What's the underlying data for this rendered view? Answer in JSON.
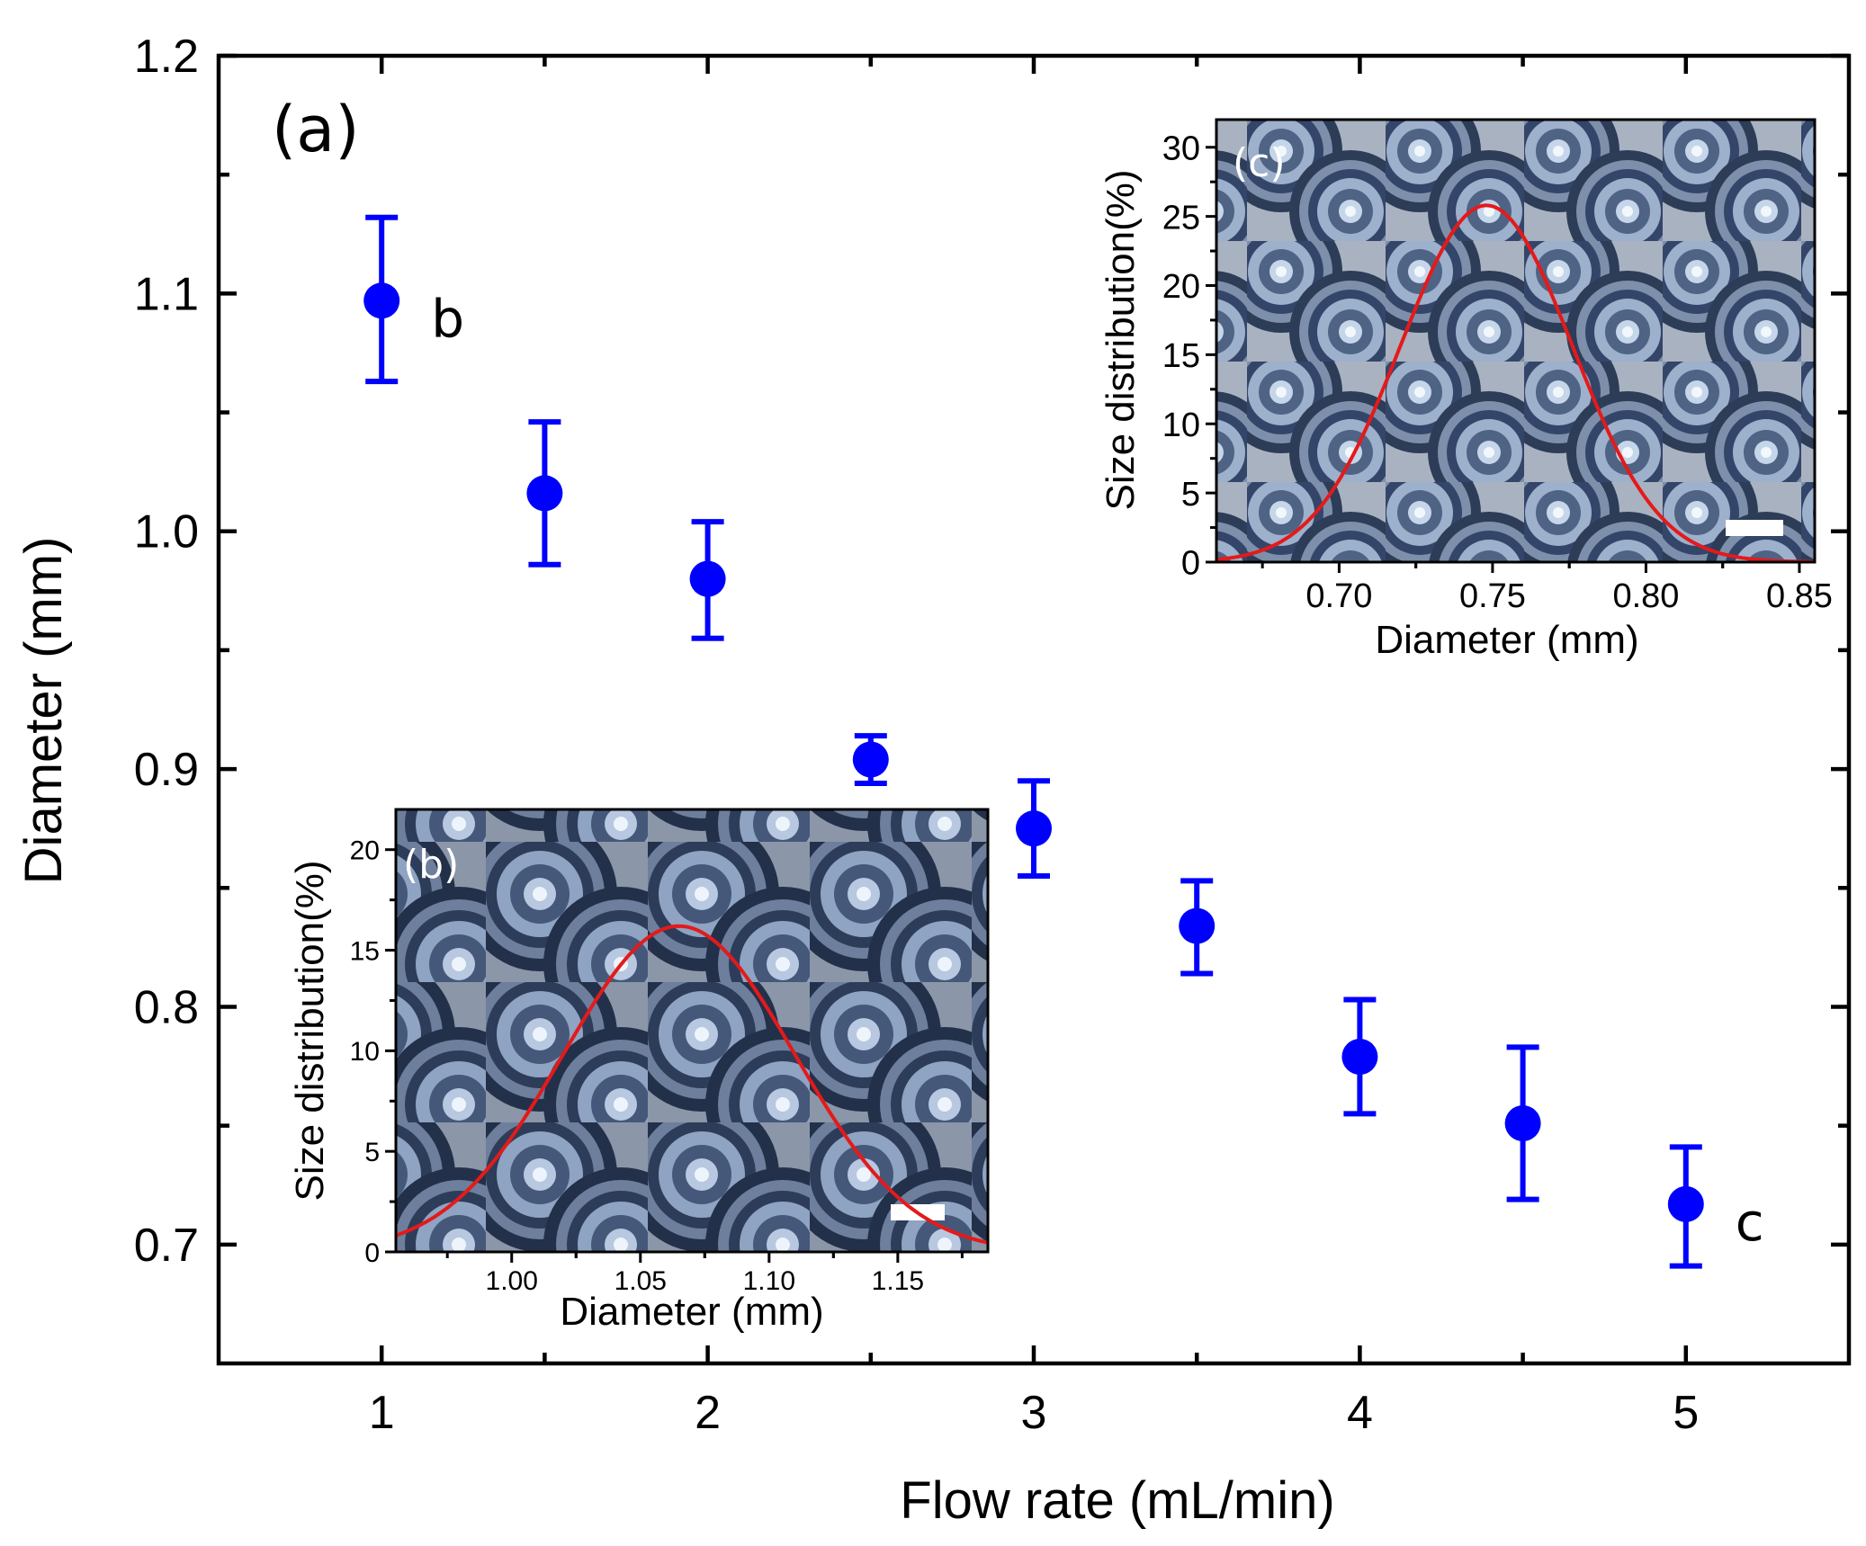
{
  "chart_data": [
    {
      "type": "scatter",
      "panel_label": "(a)",
      "xlabel": "Flow rate (mL/min)",
      "ylabel": "Diameter (mm)",
      "xlim": [
        0.5,
        5.5
      ],
      "ylim": [
        0.65,
        1.2
      ],
      "xticks": [
        "1",
        "2",
        "3",
        "4",
        "5"
      ],
      "yticks": [
        "0.7",
        "0.8",
        "0.9",
        "1.0",
        "1.1",
        "1.2"
      ],
      "marker_color": "#0000ff",
      "series": [
        {
          "name": "Diameter",
          "x": [
            1.0,
            1.5,
            2.0,
            2.5,
            3.0,
            3.5,
            4.0,
            4.5,
            5.0
          ],
          "y": [
            1.097,
            1.016,
            0.98,
            0.904,
            0.875,
            0.834,
            0.779,
            0.751,
            0.717
          ],
          "err_low": [
            1.063,
            0.986,
            0.955,
            0.894,
            0.855,
            0.814,
            0.755,
            0.719,
            0.691
          ],
          "err_high": [
            1.132,
            1.046,
            1.004,
            0.914,
            0.895,
            0.853,
            0.803,
            0.783,
            0.741
          ]
        }
      ],
      "annotations": [
        {
          "text": "b",
          "x": 1.0,
          "y": 1.097
        },
        {
          "text": "c",
          "x": 5.0,
          "y": 0.717
        }
      ]
    },
    {
      "type": "line",
      "panel_label": "(b)",
      "xlabel": "Diameter (mm)",
      "ylabel": "Size distribution(%)",
      "xlim": [
        0.955,
        1.185
      ],
      "ylim": [
        0,
        22
      ],
      "xticks": [
        "1.00",
        "1.05",
        "1.10",
        "1.15"
      ],
      "yticks": [
        "0",
        "5",
        "10",
        "15",
        "20"
      ],
      "curve_color": "#e41a1a",
      "gaussian": {
        "mean": 1.065,
        "sigma": 0.045,
        "peak": 16.2
      },
      "background": "microscope image of packed droplets with white scale bar"
    },
    {
      "type": "line",
      "panel_label": "(c)",
      "xlabel": "Diameter (mm)",
      "ylabel": "Size distribution(%)",
      "xlim": [
        0.66,
        0.855
      ],
      "ylim": [
        0,
        32
      ],
      "xticks": [
        "0.70",
        "0.75",
        "0.80",
        "0.85"
      ],
      "yticks": [
        "0",
        "5",
        "10",
        "15",
        "20",
        "25",
        "30"
      ],
      "curve_color": "#e41a1a",
      "gaussian": {
        "mean": 0.748,
        "sigma": 0.028,
        "peak": 25.8
      },
      "background": "microscope image of packed droplets with white scale bar"
    }
  ]
}
